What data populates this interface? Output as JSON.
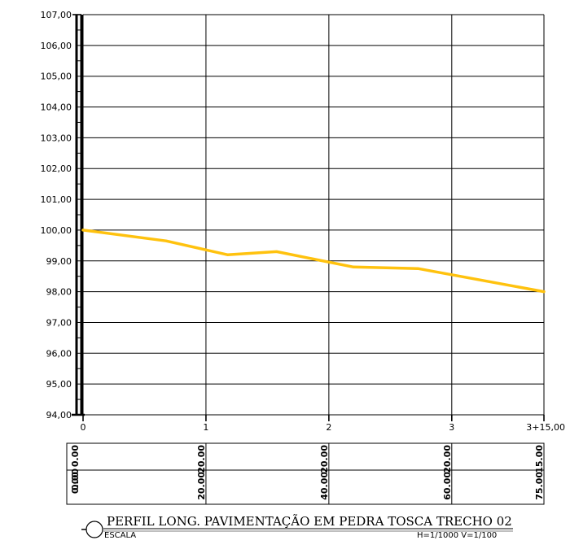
{
  "chart_data": {
    "type": "line",
    "title": "PERFIL LONG. PAVIMENTAÇÃO EM PEDRA TOSCA TRECHO 02",
    "scale_label": "ESCALA",
    "scale_value": "H=1/1000 V=1/100",
    "ylim": [
      94,
      107
    ],
    "y_ticks": [
      "94,00",
      "95,00",
      "96,00",
      "97,00",
      "98,00",
      "99,00",
      "100,00",
      "101,00",
      "102,00",
      "103,00",
      "104,00",
      "105,00",
      "106,00",
      "107,00"
    ],
    "xlim": [
      0,
      75
    ],
    "x_ticks": [
      {
        "x": 0,
        "label": "0"
      },
      {
        "x": 20,
        "label": "1"
      },
      {
        "x": 40,
        "label": "2"
      },
      {
        "x": 60,
        "label": "3"
      },
      {
        "x": 75,
        "label": "3+15,00"
      }
    ],
    "series": [
      {
        "color": "#FFC20E",
        "x": [
          0,
          13.5,
          23.5,
          31.5,
          44,
          54.5,
          75
        ],
        "y": [
          100.0,
          99.65,
          99.2,
          99.3,
          98.8,
          98.75,
          98.0
        ]
      }
    ],
    "grid": true,
    "table": {
      "rows": [
        [
          "0.00",
          "20.00",
          "20.00",
          "20.00",
          "15.00"
        ],
        [
          "0.00",
          "20.00",
          "40.00",
          "60.00",
          "75.00"
        ]
      ],
      "extra_top": "0.00"
    }
  }
}
